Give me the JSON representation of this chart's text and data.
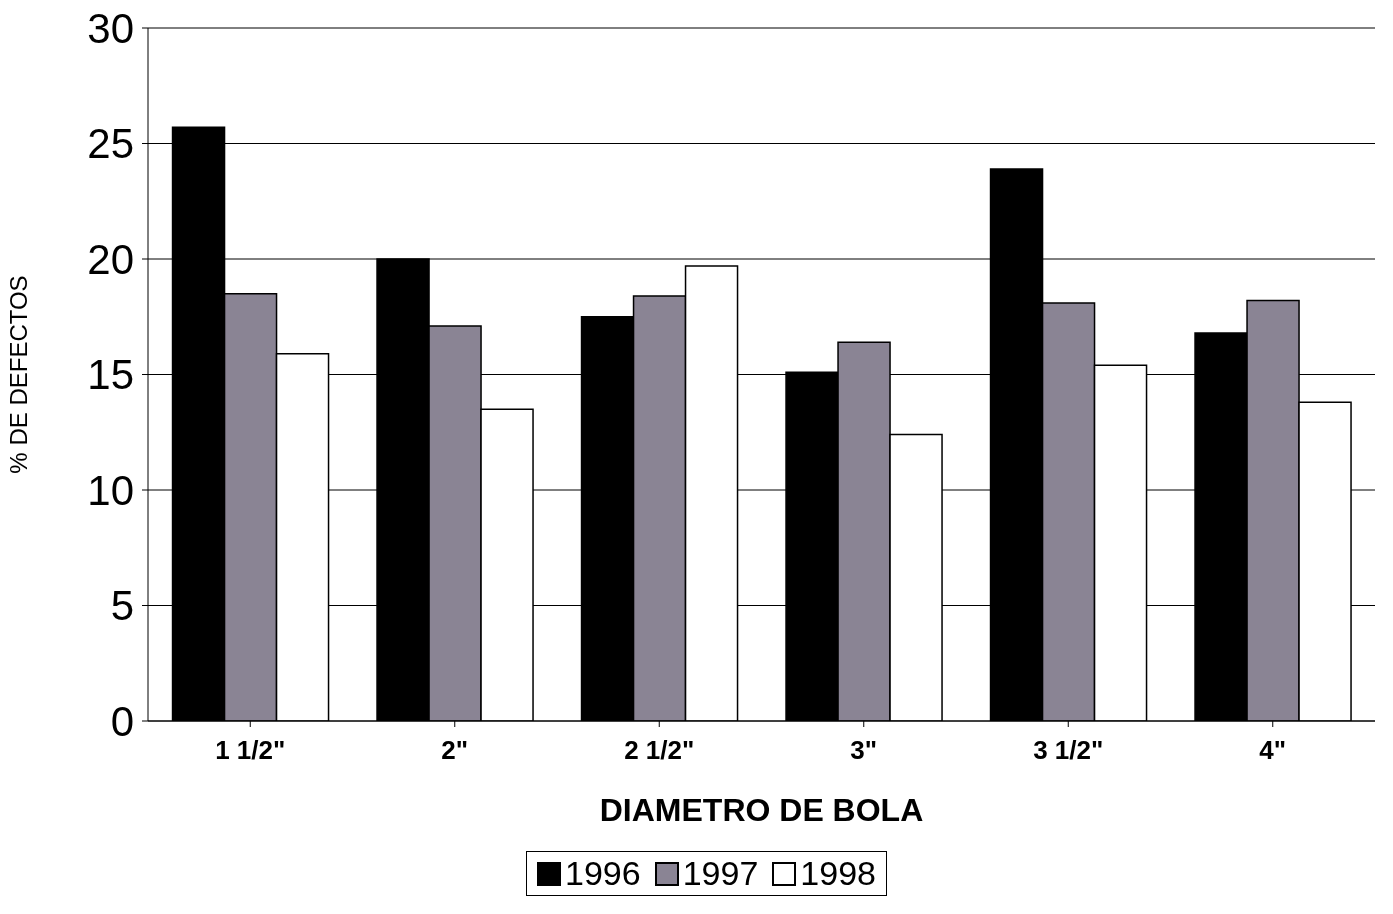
{
  "chart_data": {
    "type": "bar",
    "xlabel": "DIAMETRO DE BOLA",
    "ylabel": "% DE DEFECTOS",
    "categories": [
      "1 1/2\"",
      "2\"",
      "2 1/2\"",
      "3\"",
      "3 1/2\"",
      "4\""
    ],
    "series": [
      {
        "name": "1996",
        "color": "#000000",
        "values": [
          25.7,
          20.0,
          17.5,
          15.1,
          23.9,
          16.8
        ]
      },
      {
        "name": "1997",
        "color": "#8a8494",
        "values": [
          18.5,
          17.1,
          18.4,
          16.4,
          18.1,
          18.2
        ]
      },
      {
        "name": "1998",
        "color": "#ffffff",
        "values": [
          15.9,
          13.5,
          19.7,
          12.4,
          15.4,
          13.8
        ]
      }
    ],
    "ylim": [
      0,
      30
    ],
    "yticks": [
      0,
      5,
      10,
      15,
      20,
      25,
      30
    ],
    "grid": "y",
    "legend": "bottom"
  }
}
